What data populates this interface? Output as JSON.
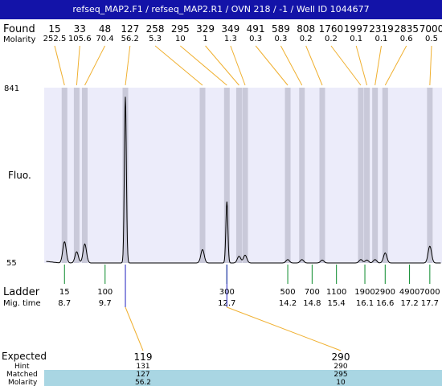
{
  "title": "refseq_MAP2.F1 / refseq_MAP2.R1 / OVN 218 / -1 / Well ID 1044677",
  "chart_data": {
    "type": "line",
    "labels": {
      "found": "Found",
      "molarity": "Molarity",
      "fluo": "Fluo.",
      "ladder": "Ladder",
      "migtime": "Mig. time",
      "expected": "Expected",
      "hint": "Hint",
      "matched": "Matched",
      "molarity_bottom": "Molarity"
    },
    "y_ticks": [
      "841",
      "55"
    ],
    "ylim": [
      55,
      841
    ],
    "xlim": [
      8.2,
      18.0
    ],
    "peaks": [
      {
        "found": "15",
        "molarity": "252.5",
        "time": 8.7,
        "h": 150
      },
      {
        "found": "33",
        "molarity": "105.6",
        "time": 9.0,
        "h": 105
      },
      {
        "found": "48",
        "molarity": "70.4",
        "time": 9.2,
        "h": 140
      },
      {
        "found": "127",
        "molarity": "56.2",
        "time": 10.2,
        "h": 800
      },
      {
        "found": "258",
        "molarity": "5.3",
        "time": 12.1,
        "h": 115
      },
      {
        "found": "295",
        "molarity": "10",
        "time": 12.7,
        "h": 330
      },
      {
        "found": "329",
        "molarity": "1",
        "time": 13.0,
        "h": 85
      },
      {
        "found": "349",
        "molarity": "1.3",
        "time": 13.15,
        "h": 90
      },
      {
        "found": "491",
        "molarity": "0.3",
        "time": 14.2,
        "h": 70
      },
      {
        "found": "589",
        "molarity": "0.3",
        "time": 14.55,
        "h": 70
      },
      {
        "found": "808",
        "molarity": "0.2",
        "time": 15.05,
        "h": 68
      },
      {
        "found": "1760",
        "molarity": "0.2",
        "time": 16.0,
        "h": 70
      },
      {
        "found": "1997",
        "molarity": "0.1",
        "time": 16.15,
        "h": 68
      },
      {
        "found": "2319",
        "molarity": "0.1",
        "time": 16.35,
        "h": 70
      },
      {
        "found": "2835",
        "molarity": "0.6",
        "time": 16.6,
        "h": 100
      },
      {
        "found": "7000",
        "molarity": "0.5",
        "time": 17.7,
        "h": 130
      }
    ],
    "ladder": [
      {
        "size": "15",
        "time": "8.7",
        "t": 8.7
      },
      {
        "size": "100",
        "time": "9.7",
        "t": 9.7
      },
      {
        "size": "300",
        "time": "12.7",
        "t": 12.7
      },
      {
        "size": "500",
        "time": "14.2",
        "t": 14.2
      },
      {
        "size": "700",
        "time": "14.8",
        "t": 14.8
      },
      {
        "size": "1100",
        "time": "15.4",
        "t": 15.4
      },
      {
        "size": "1900",
        "time": "16.1",
        "t": 16.1
      },
      {
        "size": "2900",
        "time": "16.6",
        "t": 16.6
      },
      {
        "size": "4900",
        "time": "17.2",
        "t": 17.2
      },
      {
        "size": "7000",
        "time": "17.7",
        "t": 17.7
      }
    ],
    "expected": [
      {
        "expected": "119",
        "hint": "131",
        "matched": "127",
        "molarity": "56.2",
        "time": 10.2
      },
      {
        "expected": "290",
        "hint": "290",
        "matched": "295",
        "molarity": "10",
        "time": 12.7
      }
    ]
  }
}
